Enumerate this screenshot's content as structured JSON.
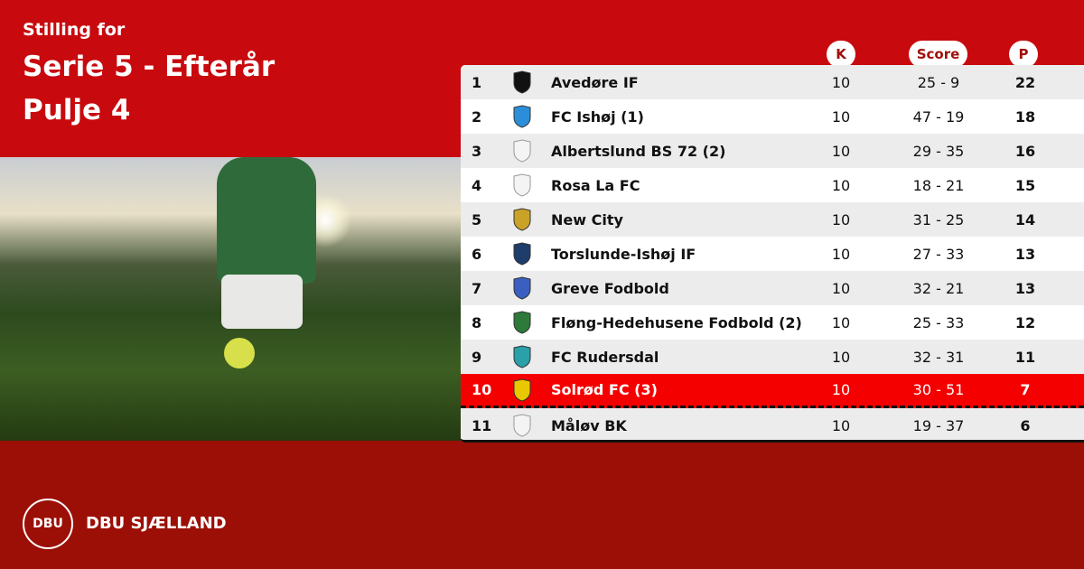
{
  "header": {
    "subtitle": "Stilling for",
    "title": "Serie 5 - Efterår",
    "group": "Pulje 4"
  },
  "columns": {
    "k": "K",
    "score": "Score",
    "p": "P"
  },
  "rows": [
    {
      "rank": "1",
      "team": "Avedøre IF",
      "k": "10",
      "score": "25 - 9",
      "p": "22",
      "crest": "black-white-shield"
    },
    {
      "rank": "2",
      "team": "FC Ishøj (1)",
      "k": "10",
      "score": "47 - 19",
      "p": "18",
      "crest": "blue-dots"
    },
    {
      "rank": "3",
      "team": "Albertslund BS 72 (2)",
      "k": "10",
      "score": "29 - 35",
      "p": "16",
      "crest": "placeholder-shield"
    },
    {
      "rank": "4",
      "team": "Rosa La FC",
      "k": "10",
      "score": "18 - 21",
      "p": "15",
      "crest": "placeholder-shield"
    },
    {
      "rank": "5",
      "team": "New City",
      "k": "10",
      "score": "31 - 25",
      "p": "14",
      "crest": "black-gold"
    },
    {
      "rank": "6",
      "team": "Torslunde-Ishøj IF",
      "k": "10",
      "score": "27 - 33",
      "p": "13",
      "crest": "navy-circle"
    },
    {
      "rank": "7",
      "team": "Greve Fodbold",
      "k": "10",
      "score": "32 - 21",
      "p": "13",
      "crest": "blue-circle"
    },
    {
      "rank": "8",
      "team": "Fløng-Hedehusene Fodbold (2)",
      "k": "10",
      "score": "25 - 33",
      "p": "12",
      "crest": "green-shield"
    },
    {
      "rank": "9",
      "team": "FC Rudersdal",
      "k": "10",
      "score": "32 - 31",
      "p": "11",
      "crest": "teal-shield"
    },
    {
      "rank": "10",
      "team": "Solrød FC (3)",
      "k": "10",
      "score": "30 - 51",
      "p": "7",
      "crest": "red-yellow-shield",
      "highlighted": true
    },
    {
      "rank": "11",
      "team": "Måløv BK",
      "k": "10",
      "score": "19 - 37",
      "p": "6",
      "crest": "placeholder-shield"
    }
  ],
  "footer": {
    "brand": "DBU SJÆLLAND",
    "logo_text": "DBU"
  },
  "colors": {
    "top": "#c80a0e",
    "bottom": "#9c0f06",
    "highlight": "#f50000",
    "header_text": "#a0100a"
  }
}
